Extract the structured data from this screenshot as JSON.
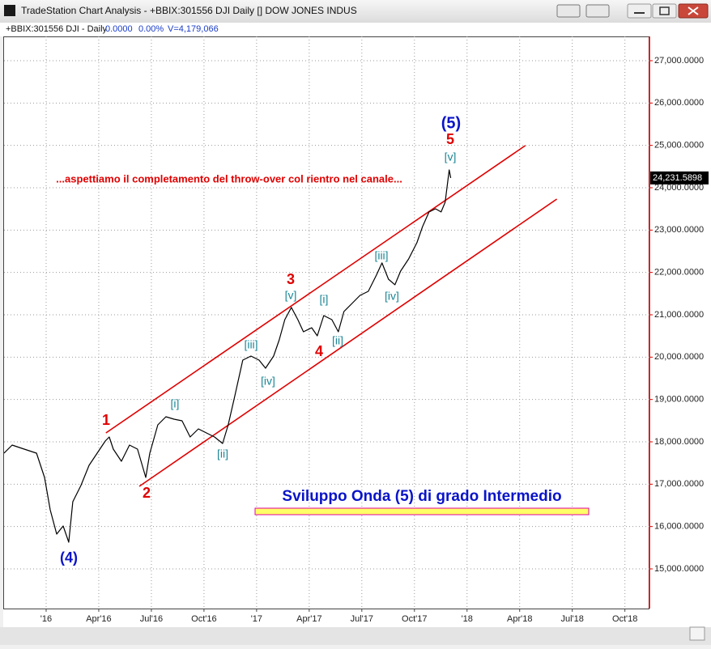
{
  "window": {
    "title": "TradeStation Chart Analysis - +BBIX:301556 DJI Daily [] DOW JONES INDUS"
  },
  "chart_data": {
    "type": "line",
    "header": [
      "+BBIX:301556 DJI - Daily",
      "0.0000",
      "0.00%",
      "V=4,179,066"
    ],
    "xlim": [
      -2.4,
      34.4
    ],
    "ylim": [
      14064,
      27573
    ],
    "xticks": [
      {
        "value": 0,
        "label": "'16"
      },
      {
        "value": 3,
        "label": "Apr'16"
      },
      {
        "value": 6,
        "label": "Jul'16"
      },
      {
        "value": 9,
        "label": "Oct'16"
      },
      {
        "value": 12,
        "label": "'17"
      },
      {
        "value": 15,
        "label": "Apr'17"
      },
      {
        "value": 18,
        "label": "Jul'17"
      },
      {
        "value": 21,
        "label": "Oct'17"
      },
      {
        "value": 24,
        "label": "'18"
      },
      {
        "value": 27,
        "label": "Apr'18"
      },
      {
        "value": 30,
        "label": "Jul'18"
      },
      {
        "value": 33,
        "label": "Oct'18"
      }
    ],
    "yticks": [
      {
        "value": 15000,
        "label": "15,000.0000"
      },
      {
        "value": 16000,
        "label": "16,000.0000"
      },
      {
        "value": 17000,
        "label": "17,000.0000"
      },
      {
        "value": 18000,
        "label": "18,000.0000"
      },
      {
        "value": 19000,
        "label": "19,000.0000"
      },
      {
        "value": 20000,
        "label": "20,000.0000"
      },
      {
        "value": 21000,
        "label": "21,000.0000"
      },
      {
        "value": 22000,
        "label": "22,000.0000"
      },
      {
        "value": 23000,
        "label": "23,000.0000"
      },
      {
        "value": 24000,
        "label": "24,000.0000"
      },
      {
        "value": 25000,
        "label": "25,000.0000"
      },
      {
        "value": 26000,
        "label": "26,000.0000"
      },
      {
        "value": 27000,
        "label": "27,000.0000"
      }
    ],
    "grid": true,
    "color": "#000000",
    "x": [
      -2.4,
      -1.94,
      -1.25,
      -0.55,
      -0.09,
      0.23,
      0.6,
      0.97,
      1.29,
      1.52,
      1.98,
      2.45,
      2.91,
      3.37,
      3.6,
      3.83,
      4.29,
      4.75,
      5.21,
      5.68,
      5.91,
      6.37,
      6.83,
      7.29,
      7.75,
      8.21,
      8.68,
      9.14,
      9.6,
      10.06,
      10.38,
      10.75,
      11.21,
      11.68,
      12.14,
      12.51,
      12.97,
      13.29,
      13.61,
      13.98,
      14.35,
      14.67,
      15.14,
      15.46,
      15.83,
      16.29,
      16.66,
      16.98,
      17.44,
      17.9,
      18.37,
      18.83,
      19.15,
      19.52,
      19.89,
      20.21,
      20.67,
      21.14,
      21.46,
      21.83,
      22.2,
      22.52,
      22.75,
      22.98,
      23.07
    ],
    "values": [
      17733,
      17924,
      17828,
      17733,
      17159,
      16395,
      15822,
      16013,
      15631,
      16586,
      16968,
      17446,
      17733,
      18019,
      18115,
      17828,
      17542,
      17924,
      17828,
      17159,
      17733,
      18402,
      18593,
      18535,
      18497,
      18115,
      18306,
      18210,
      18115,
      17962,
      18402,
      19070,
      19930,
      20026,
      19930,
      19739,
      20026,
      20408,
      20886,
      21173,
      20886,
      20599,
      20695,
      20504,
      20981,
      20886,
      20599,
      21077,
      21268,
      21459,
      21555,
      21937,
      22224,
      21841,
      21708,
      22032,
      22319,
      22701,
      23083,
      23428,
      23504,
      23428,
      23657,
      24421,
      24231.5898
    ],
    "last_value_label": "24,231.5898",
    "channel": [
      {
        "color": "#e00000",
        "x": [
          3.41,
          27.32
        ],
        "values": [
          18210,
          24995
        ]
      },
      {
        "color": "#e00000",
        "x": [
          5.31,
          29.12
        ],
        "values": [
          16949,
          23733
        ]
      }
    ],
    "annotations": [
      {
        "text": "(4)",
        "color": "#0a14c8"
      },
      {
        "text": "1",
        "color": "#e00000"
      },
      {
        "text": "2",
        "color": "#e00000"
      },
      {
        "text": "[i]",
        "color": "#1b8796"
      },
      {
        "text": "[ii]",
        "color": "#1b8796"
      },
      {
        "text": "[iii]",
        "color": "#1b8796"
      },
      {
        "text": "[iv]",
        "color": "#1b8796"
      },
      {
        "text": "3",
        "color": "#e00000"
      },
      {
        "text": "[v]",
        "color": "#1b8796"
      },
      {
        "text": "4",
        "color": "#e00000"
      },
      {
        "text": "[i]",
        "color": "#1b8796"
      },
      {
        "text": "[ii]",
        "color": "#1b8796"
      },
      {
        "text": "[iii]",
        "color": "#1b8796"
      },
      {
        "text": "[iv]",
        "color": "#1b8796"
      },
      {
        "text": "5",
        "color": "#e00000"
      },
      {
        "text": "[v]",
        "color": "#1b8796"
      },
      {
        "text": "(5)",
        "color": "#0a14c8"
      }
    ],
    "comment": {
      "text": "...aspettiamo il completamento del throw-over col rientro nel canale...",
      "color": "#e00000"
    },
    "banner": {
      "text": "Sviluppo Onda (5) di grado Intermedio",
      "color": "#0a14c8"
    }
  }
}
